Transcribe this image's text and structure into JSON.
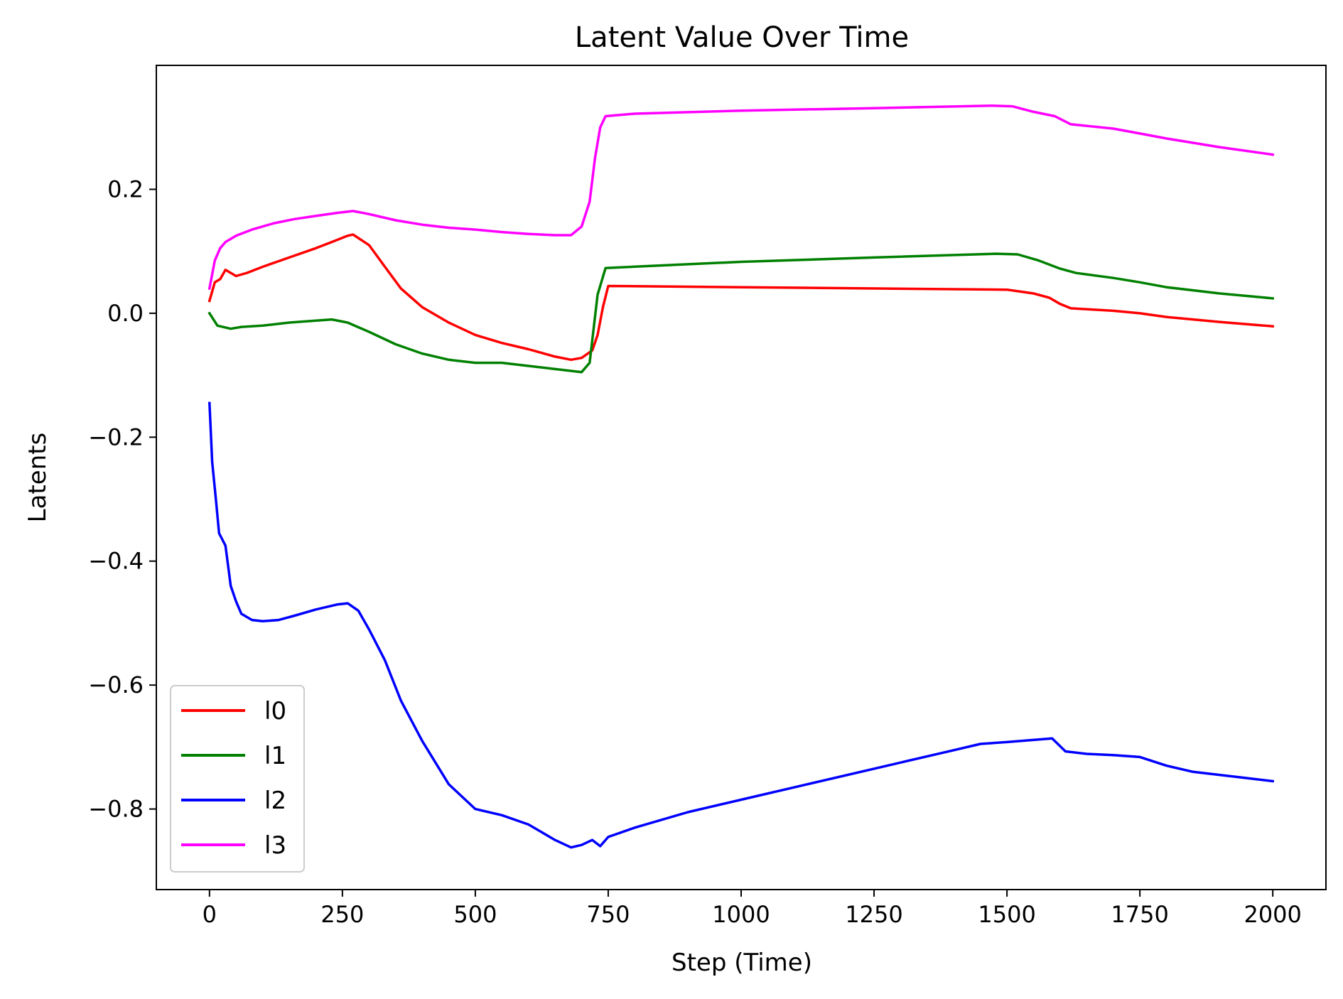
{
  "chart_data": {
    "type": "line",
    "title": "Latent Value Over Time",
    "xlabel": "Step (Time)",
    "ylabel": "Latents",
    "xlim": [
      -100,
      2100
    ],
    "ylim": [
      -0.93,
      0.4
    ],
    "xticks": [
      0,
      250,
      500,
      750,
      1000,
      1250,
      1500,
      1750,
      2000
    ],
    "yticks": [
      0.2,
      0.0,
      -0.2,
      -0.4,
      -0.6,
      -0.8
    ],
    "ytick_labels": [
      "0.2",
      "0.0",
      "−0.2",
      "−0.4",
      "−0.6",
      "−0.8"
    ],
    "xtick_labels": [
      "0",
      "250",
      "500",
      "750",
      "1000",
      "1250",
      "1500",
      "1750",
      "2000"
    ],
    "grid": false,
    "legend_position": "lower-left",
    "series": [
      {
        "name": "l0",
        "color": "#ff0000",
        "points": [
          [
            0,
            0.02
          ],
          [
            10,
            0.05
          ],
          [
            20,
            0.055
          ],
          [
            30,
            0.07
          ],
          [
            50,
            0.06
          ],
          [
            70,
            0.065
          ],
          [
            100,
            0.075
          ],
          [
            150,
            0.09
          ],
          [
            200,
            0.105
          ],
          [
            230,
            0.115
          ],
          [
            260,
            0.125
          ],
          [
            270,
            0.127
          ],
          [
            300,
            0.11
          ],
          [
            330,
            0.075
          ],
          [
            360,
            0.04
          ],
          [
            400,
            0.01
          ],
          [
            450,
            -0.015
          ],
          [
            500,
            -0.035
          ],
          [
            550,
            -0.048
          ],
          [
            600,
            -0.058
          ],
          [
            650,
            -0.07
          ],
          [
            680,
            -0.075
          ],
          [
            700,
            -0.072
          ],
          [
            720,
            -0.06
          ],
          [
            730,
            -0.035
          ],
          [
            740,
            0.01
          ],
          [
            750,
            0.044
          ],
          [
            1000,
            0.042
          ],
          [
            1500,
            0.038
          ],
          [
            1550,
            0.032
          ],
          [
            1580,
            0.025
          ],
          [
            1600,
            0.015
          ],
          [
            1620,
            0.008
          ],
          [
            1700,
            0.004
          ],
          [
            1750,
            0.0
          ],
          [
            1800,
            -0.006
          ],
          [
            1900,
            -0.014
          ],
          [
            2000,
            -0.021
          ]
        ]
      },
      {
        "name": "l1",
        "color": "#008000",
        "points": [
          [
            0,
            0.0
          ],
          [
            15,
            -0.02
          ],
          [
            40,
            -0.025
          ],
          [
            60,
            -0.022
          ],
          [
            100,
            -0.02
          ],
          [
            150,
            -0.015
          ],
          [
            200,
            -0.012
          ],
          [
            230,
            -0.01
          ],
          [
            260,
            -0.015
          ],
          [
            300,
            -0.03
          ],
          [
            350,
            -0.05
          ],
          [
            400,
            -0.065
          ],
          [
            450,
            -0.075
          ],
          [
            500,
            -0.08
          ],
          [
            550,
            -0.08
          ],
          [
            600,
            -0.085
          ],
          [
            650,
            -0.09
          ],
          [
            700,
            -0.095
          ],
          [
            715,
            -0.08
          ],
          [
            730,
            0.03
          ],
          [
            745,
            0.073
          ],
          [
            1000,
            0.083
          ],
          [
            1250,
            0.09
          ],
          [
            1480,
            0.096
          ],
          [
            1520,
            0.095
          ],
          [
            1560,
            0.085
          ],
          [
            1600,
            0.072
          ],
          [
            1630,
            0.065
          ],
          [
            1700,
            0.057
          ],
          [
            1750,
            0.05
          ],
          [
            1800,
            0.042
          ],
          [
            1900,
            0.032
          ],
          [
            2000,
            0.024
          ]
        ]
      },
      {
        "name": "l2",
        "color": "#0000ff",
        "points": [
          [
            0,
            -0.145
          ],
          [
            5,
            -0.24
          ],
          [
            12,
            -0.3
          ],
          [
            18,
            -0.355
          ],
          [
            30,
            -0.375
          ],
          [
            40,
            -0.44
          ],
          [
            50,
            -0.465
          ],
          [
            60,
            -0.485
          ],
          [
            80,
            -0.495
          ],
          [
            100,
            -0.497
          ],
          [
            130,
            -0.495
          ],
          [
            160,
            -0.488
          ],
          [
            200,
            -0.478
          ],
          [
            240,
            -0.47
          ],
          [
            260,
            -0.468
          ],
          [
            280,
            -0.48
          ],
          [
            300,
            -0.51
          ],
          [
            330,
            -0.56
          ],
          [
            360,
            -0.625
          ],
          [
            400,
            -0.69
          ],
          [
            450,
            -0.76
          ],
          [
            500,
            -0.8
          ],
          [
            550,
            -0.81
          ],
          [
            600,
            -0.825
          ],
          [
            650,
            -0.85
          ],
          [
            680,
            -0.862
          ],
          [
            700,
            -0.858
          ],
          [
            720,
            -0.85
          ],
          [
            735,
            -0.86
          ],
          [
            750,
            -0.845
          ],
          [
            800,
            -0.83
          ],
          [
            900,
            -0.805
          ],
          [
            1000,
            -0.785
          ],
          [
            1100,
            -0.765
          ],
          [
            1250,
            -0.735
          ],
          [
            1400,
            -0.705
          ],
          [
            1450,
            -0.695
          ],
          [
            1500,
            -0.692
          ],
          [
            1585,
            -0.686
          ],
          [
            1610,
            -0.707
          ],
          [
            1650,
            -0.711
          ],
          [
            1700,
            -0.713
          ],
          [
            1750,
            -0.716
          ],
          [
            1800,
            -0.73
          ],
          [
            1850,
            -0.74
          ],
          [
            1900,
            -0.745
          ],
          [
            1950,
            -0.75
          ],
          [
            2000,
            -0.755
          ]
        ]
      },
      {
        "name": "l3",
        "color": "#ff00ff",
        "points": [
          [
            0,
            0.04
          ],
          [
            10,
            0.085
          ],
          [
            20,
            0.105
          ],
          [
            30,
            0.115
          ],
          [
            50,
            0.125
          ],
          [
            80,
            0.135
          ],
          [
            120,
            0.145
          ],
          [
            160,
            0.152
          ],
          [
            200,
            0.157
          ],
          [
            240,
            0.162
          ],
          [
            270,
            0.165
          ],
          [
            300,
            0.16
          ],
          [
            350,
            0.15
          ],
          [
            400,
            0.143
          ],
          [
            450,
            0.138
          ],
          [
            500,
            0.135
          ],
          [
            550,
            0.131
          ],
          [
            600,
            0.128
          ],
          [
            650,
            0.126
          ],
          [
            680,
            0.126
          ],
          [
            700,
            0.14
          ],
          [
            715,
            0.18
          ],
          [
            725,
            0.25
          ],
          [
            735,
            0.3
          ],
          [
            745,
            0.318
          ],
          [
            800,
            0.322
          ],
          [
            1000,
            0.327
          ],
          [
            1250,
            0.331
          ],
          [
            1470,
            0.335
          ],
          [
            1510,
            0.334
          ],
          [
            1550,
            0.325
          ],
          [
            1590,
            0.318
          ],
          [
            1620,
            0.305
          ],
          [
            1700,
            0.298
          ],
          [
            1750,
            0.29
          ],
          [
            1800,
            0.282
          ],
          [
            1900,
            0.268
          ],
          [
            2000,
            0.256
          ]
        ]
      }
    ]
  }
}
